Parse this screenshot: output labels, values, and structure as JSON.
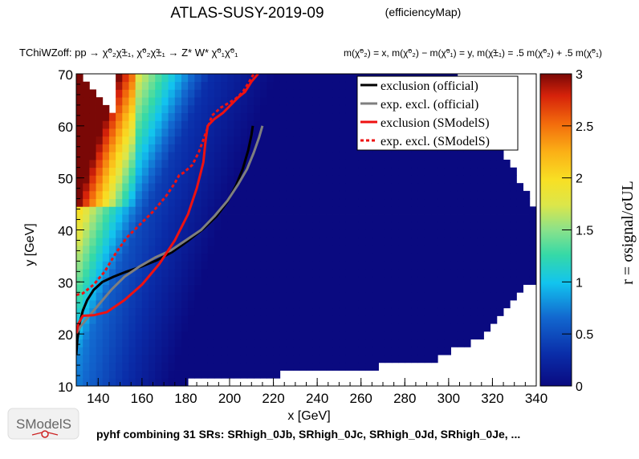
{
  "header": {
    "title": "ATLAS-SUSY-2019-09",
    "map_type": "(efficiencyMap)"
  },
  "process_line": "TChiWZoff: pp → χ̃⁰₂χ̃±₁, χ̃⁰₂χ̃±₁ → Z* W* χ̃⁰₁χ̃⁰₁",
  "mass_relation": "m(χ̃⁰₂) = x, m(χ̃⁰₂) − m(χ̃⁰₁) = y, m(χ̃±₁) = .5 m(χ̃⁰₂) + .5 m(χ̃⁰₁)",
  "footer": {
    "logo_text": "SModelS",
    "note": "pyhf combining 31 SRs: SRhigh_0Jb, SRhigh_0Jc, SRhigh_0Jd, SRhigh_0Je, ..."
  },
  "colors": {
    "exclusion_official": "#000000",
    "exp_excl_official": "#7f7f7f",
    "exclusion_smodels": "#ee1111",
    "exp_excl_smodels": "#ee1111"
  },
  "chart_data": {
    "type": "heatmap",
    "xlabel": "x [GeV]",
    "ylabel": "y [GeV]",
    "xlim": [
      130,
      340
    ],
    "ylim": [
      10,
      70
    ],
    "xticks": [
      140,
      160,
      180,
      200,
      220,
      240,
      260,
      280,
      300,
      320,
      340
    ],
    "yticks": [
      10,
      20,
      30,
      40,
      50,
      60,
      70
    ],
    "colorbar": {
      "label": "r = σsignal/σUL",
      "range": [
        0,
        3
      ],
      "ticks": [
        0,
        0.5,
        1,
        1.5,
        2,
        2.5,
        3
      ]
    },
    "legend_position": "top-right",
    "series": [
      {
        "name": "exclusion (official)",
        "style": "solid",
        "x": [
          130.0,
          130.5,
          131.5,
          133.0,
          135.0,
          138.0,
          142.0,
          147.0,
          153.0,
          160.0,
          167.0,
          174.0,
          181.0,
          188.0,
          194.0,
          199.0,
          203.0,
          206.0,
          208.5,
          210.0,
          210.6
        ],
        "y": [
          16.0,
          19.0,
          22.0,
          24.5,
          26.5,
          28.5,
          30.0,
          31.0,
          32.0,
          33.0,
          34.2,
          35.8,
          37.9,
          40.2,
          42.6,
          45.4,
          48.6,
          51.7,
          55.3,
          58.3,
          60.0
        ]
      },
      {
        "name": "exp. excl. (official)",
        "style": "dashed",
        "x": [
          130.0,
          132.0,
          135.0,
          140.0,
          146.0,
          152.0,
          159.0,
          166.0,
          173.0,
          180.0,
          187.0,
          193.0,
          199.0,
          204.0,
          208.0,
          211.0,
          213.5,
          215.0
        ],
        "y": [
          20.0,
          21.5,
          23.0,
          25.5,
          28.5,
          31.0,
          33.0,
          34.7,
          36.0,
          38.0,
          40.0,
          42.6,
          45.6,
          48.8,
          51.7,
          54.8,
          57.8,
          60.0
        ]
      },
      {
        "name": "exclusion (SModelS)",
        "style": "solid",
        "x": [
          130.0,
          131.0,
          133.0,
          138.0,
          144.0,
          152.0,
          160.0,
          168.0,
          175.0,
          181.0,
          185.0,
          188.0,
          189.0,
          190.0,
          193.0,
          197.0,
          201.0,
          204.0,
          207.0,
          210.0,
          213.0
        ],
        "y": [
          20.0,
          22.0,
          23.5,
          23.6,
          24.2,
          26.5,
          29.5,
          33.5,
          38.0,
          43.0,
          48.0,
          53.0,
          57.0,
          60.0,
          61.3,
          62.5,
          64.2,
          65.5,
          66.5,
          68.5,
          70.0
        ]
      },
      {
        "name": "exp. excl. (SModelS)",
        "style": "dotted",
        "x": [
          130.0,
          133.0,
          138.0,
          143.0,
          148.0,
          153.0,
          159.0,
          165.0,
          171.0,
          175.0,
          177.0,
          179.0,
          183.0,
          186.0,
          189.0,
          192.0,
          196.0,
          200.0,
          203.0,
          206.0,
          209.0,
          211.0
        ],
        "y": [
          27.5,
          27.8,
          29.5,
          32.0,
          35.5,
          38.5,
          41.0,
          43.5,
          46.5,
          49.0,
          50.5,
          51.0,
          52.5,
          55.0,
          58.5,
          62.0,
          63.5,
          64.5,
          65.3,
          66.5,
          68.5,
          70.0
        ]
      }
    ]
  }
}
